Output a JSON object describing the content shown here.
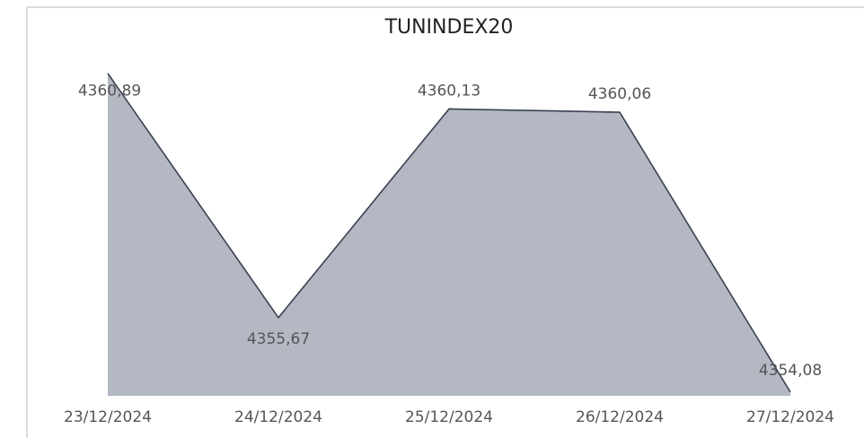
{
  "chart_data": {
    "type": "area",
    "title": "TUNINDEX20",
    "categories": [
      "23/12/2024",
      "24/12/2024",
      "25/12/2024",
      "26/12/2024",
      "27/12/2024"
    ],
    "values": [
      4360.89,
      4355.67,
      4360.13,
      4360.06,
      4354.08
    ],
    "value_labels": [
      "4360,89",
      "4355,67",
      "4360,13",
      "4360,06",
      "4354,08"
    ],
    "color": "#b3b8c2",
    "line_color": "#3a4152",
    "ylim": [
      4354,
      4361
    ]
  }
}
